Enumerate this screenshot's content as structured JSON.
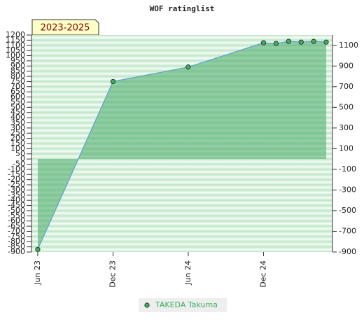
{
  "chart_data": {
    "type": "area",
    "title": "WOF ratinglist",
    "badge": "2023-2025",
    "x": [
      0,
      6,
      12,
      18,
      19,
      20,
      21,
      22,
      23
    ],
    "xlim": [
      -0.5,
      23.5
    ],
    "xticks": [
      {
        "value": 0,
        "label": "Jun 23"
      },
      {
        "value": 6,
        "label": "Dec 23"
      },
      {
        "value": 12,
        "label": "Jun 24"
      },
      {
        "value": 18,
        "label": "Dec 24"
      }
    ],
    "series": [
      {
        "name": "TAKEDA Takuma",
        "color": "#5a9fd0",
        "values": [
          -875,
          750,
          890,
          1125,
          1118,
          1138,
          1131,
          1138,
          1131
        ]
      }
    ],
    "ylim": [
      -900,
      1200
    ],
    "yticks": [
      1200,
      1150,
      1100,
      1050,
      1000,
      950,
      900,
      850,
      800,
      750,
      700,
      650,
      600,
      550,
      500,
      450,
      400,
      350,
      300,
      250,
      200,
      150,
      100,
      50,
      0,
      -50,
      -100,
      -150,
      -200,
      -250,
      -300,
      -350,
      -400,
      -450,
      -500,
      -550,
      -600,
      -650,
      -700,
      -750,
      -800,
      -850,
      -900
    ],
    "y2lim": [
      -900,
      1200
    ],
    "y2ticks": [
      1100,
      900,
      700,
      500,
      300,
      100,
      -100,
      -300,
      -500,
      -700,
      -900
    ],
    "grid": true
  }
}
